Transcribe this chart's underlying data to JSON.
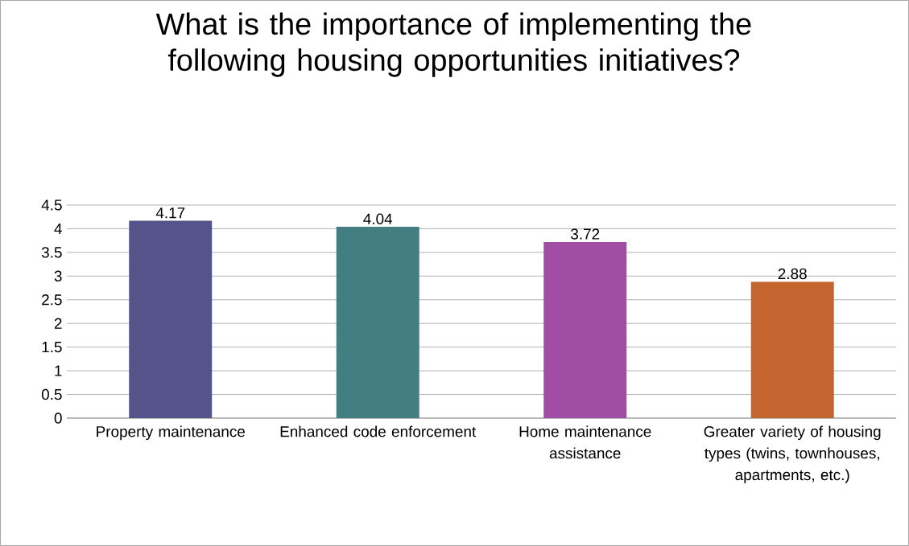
{
  "chart_data": {
    "type": "bar",
    "title": "What is the importance of implementing the following housing opportunities initiatives?",
    "categories": [
      "Property maintenance",
      "Enhanced code enforcement",
      "Home maintenance assistance",
      "Greater variety of housing types (twins, townhouses, apartments, etc.)"
    ],
    "values": [
      4.17,
      4.04,
      3.72,
      2.88
    ],
    "colors": [
      "#55548a",
      "#437f82",
      "#a04ea3",
      "#c4642f"
    ],
    "ylim": [
      0,
      4.5
    ],
    "yticks": [
      0,
      0.5,
      1,
      1.5,
      2,
      2.5,
      3,
      3.5,
      4,
      4.5
    ],
    "grid": "y",
    "data_labels": true
  }
}
